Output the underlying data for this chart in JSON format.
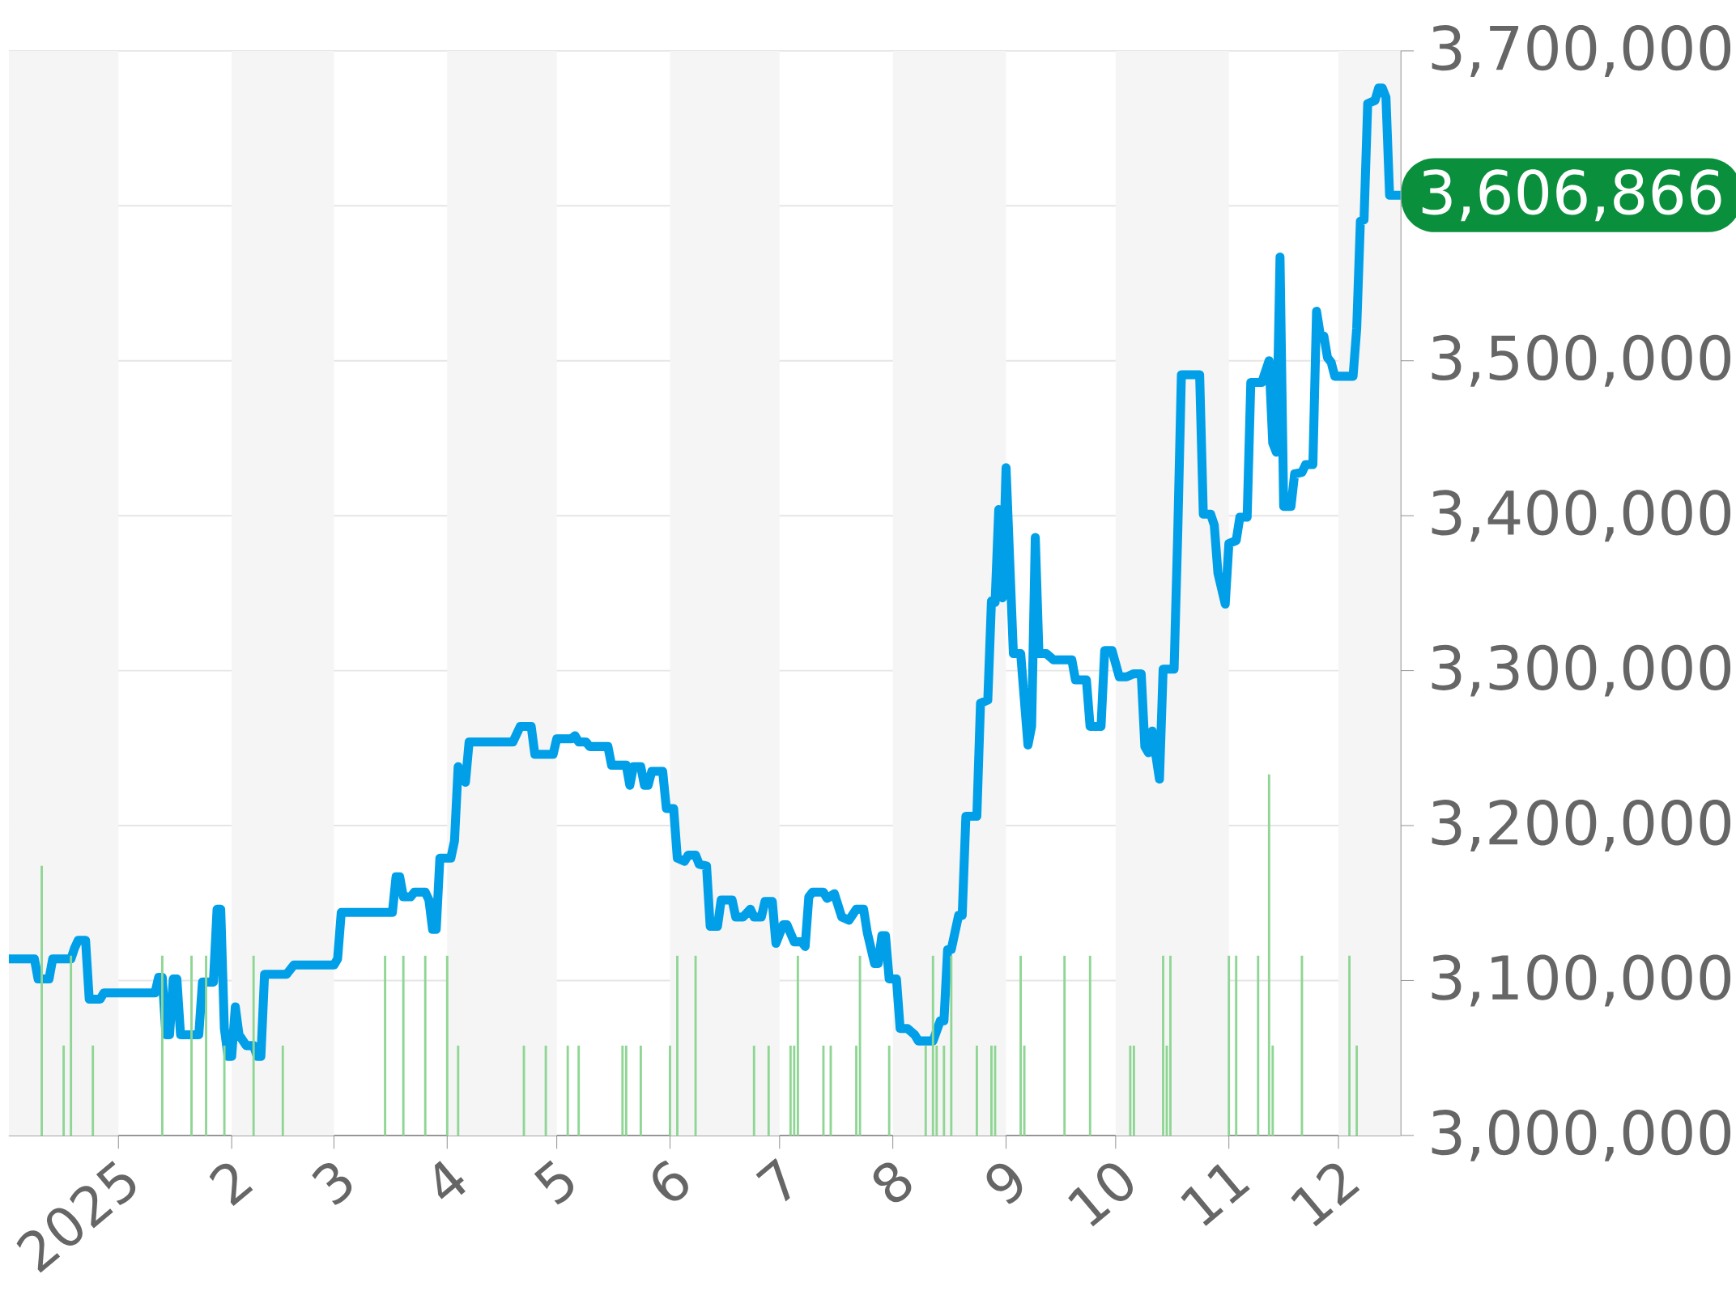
{
  "chart_data": {
    "type": "line",
    "xlim": [
      "2024-12-02",
      "2025-12-18"
    ],
    "ylim": [
      3000000,
      3700000
    ],
    "xticks": [
      {
        "value": "2025-01-01",
        "label": "2025"
      },
      {
        "value": "2025-02-01",
        "label": "2"
      },
      {
        "value": "2025-03-01",
        "label": "3"
      },
      {
        "value": "2025-04-01",
        "label": "4"
      },
      {
        "value": "2025-05-01",
        "label": "5"
      },
      {
        "value": "2025-06-01",
        "label": "6"
      },
      {
        "value": "2025-07-01",
        "label": "7"
      },
      {
        "value": "2025-08-01",
        "label": "8"
      },
      {
        "value": "2025-09-01",
        "label": "9"
      },
      {
        "value": "2025-10-01",
        "label": "10"
      },
      {
        "value": "2025-11-01",
        "label": "11"
      },
      {
        "value": "2025-12-01",
        "label": "12"
      }
    ],
    "yticks": [
      {
        "value": 3000000,
        "label": "3,000,000"
      },
      {
        "value": 3100000,
        "label": "3,100,000"
      },
      {
        "value": 3200000,
        "label": "3,200,000"
      },
      {
        "value": 3300000,
        "label": "3,300,000"
      },
      {
        "value": 3400000,
        "label": "3,400,000"
      },
      {
        "value": 3500000,
        "label": "3,500,000"
      },
      {
        "value": 3600000,
        "label": null
      },
      {
        "value": 3700000,
        "label": "3,700,000"
      }
    ],
    "grid": "y",
    "bands": [
      {
        "axis": "x",
        "from": "2024-12-02",
        "to": "2025-01-01",
        "color": "#f5f5f5"
      },
      {
        "axis": "x",
        "from": "2025-02-01",
        "to": "2025-03-01",
        "color": "#f5f5f5"
      },
      {
        "axis": "x",
        "from": "2025-04-01",
        "to": "2025-05-01",
        "color": "#f5f5f5"
      },
      {
        "axis": "x",
        "from": "2025-06-01",
        "to": "2025-07-01",
        "color": "#f5f5f5"
      },
      {
        "axis": "x",
        "from": "2025-08-01",
        "to": "2025-09-01",
        "color": "#f5f5f5"
      },
      {
        "axis": "x",
        "from": "2025-10-01",
        "to": "2025-11-01",
        "color": "#f5f5f5"
      },
      {
        "axis": "x",
        "from": "2025-12-01",
        "to": "2025-12-18",
        "color": "#f5f5f5"
      }
    ],
    "series": [
      {
        "type": "bar",
        "color": "#8fd694",
        "x": [
          "2024-12-11",
          "2024-12-17",
          "2024-12-19",
          "2024-12-25",
          "2025-01-13",
          "2025-01-21",
          "2025-01-25",
          "2025-01-30",
          "2025-02-07",
          "2025-02-15",
          "2025-03-15",
          "2025-03-20",
          "2025-03-26",
          "2025-04-01",
          "2025-04-04",
          "2025-04-22",
          "2025-04-28",
          "2025-05-04",
          "2025-05-07",
          "2025-05-19",
          "2025-05-20",
          "2025-05-24",
          "2025-06-01",
          "2025-06-03",
          "2025-06-08",
          "2025-06-24",
          "2025-06-28",
          "2025-07-04",
          "2025-07-05",
          "2025-07-06",
          "2025-07-13",
          "2025-07-15",
          "2025-07-22",
          "2025-07-23",
          "2025-07-31",
          "2025-08-10",
          "2025-08-12",
          "2025-08-13",
          "2025-08-15",
          "2025-08-17",
          "2025-08-24",
          "2025-08-28",
          "2025-08-29",
          "2025-09-05",
          "2025-09-06",
          "2025-09-17",
          "2025-09-24",
          "2025-10-05",
          "2025-10-06",
          "2025-10-14",
          "2025-10-15",
          "2025-10-16",
          "2025-11-01",
          "2025-11-03",
          "2025-11-09",
          "2025-11-12",
          "2025-11-13",
          "2025-11-21",
          "2025-12-04",
          "2025-12-06"
        ],
        "values": [
          3174000,
          3058000,
          3116000,
          3058000,
          3116000,
          3116000,
          3116000,
          3058000,
          3116000,
          3058000,
          3116000,
          3116000,
          3116000,
          3116000,
          3058000,
          3058000,
          3058000,
          3058000,
          3058000,
          3058000,
          3058000,
          3058000,
          3058000,
          3116000,
          3116000,
          3058000,
          3058000,
          3058000,
          3058000,
          3116000,
          3058000,
          3058000,
          3058000,
          3116000,
          3058000,
          3058000,
          3116000,
          3058000,
          3058000,
          3116000,
          3058000,
          3058000,
          3058000,
          3116000,
          3058000,
          3116000,
          3116000,
          3058000,
          3058000,
          3116000,
          3058000,
          3116000,
          3116000,
          3116000,
          3116000,
          3233000,
          3058000,
          3116000,
          3116000,
          3058000
        ]
      },
      {
        "color": "#009fe8",
        "x": [
          "2024-12-02",
          "2024-12-09",
          "2024-12-10",
          "2024-12-13",
          "2024-12-14",
          "2024-12-19",
          "2024-12-20",
          "2024-12-21",
          "2024-12-23",
          "2024-12-24",
          "2024-12-27",
          "2024-12-28",
          "2025-01-11",
          "2025-01-12",
          "2025-01-13",
          "2025-01-14",
          "2025-01-15",
          "2025-01-16",
          "2025-01-17",
          "2025-01-18",
          "2025-01-23",
          "2025-01-24",
          "2025-01-27",
          "2025-01-28",
          "2025-01-29",
          "2025-01-30",
          "2025-01-31",
          "2025-02-01",
          "2025-02-02",
          "2025-02-03",
          "2025-02-05",
          "2025-02-07",
          "2025-02-08",
          "2025-02-09",
          "2025-02-10",
          "2025-02-16",
          "2025-02-18",
          "2025-03-01",
          "2025-03-02",
          "2025-03-03",
          "2025-03-17",
          "2025-03-18",
          "2025-03-19",
          "2025-03-20",
          "2025-03-22",
          "2025-03-23",
          "2025-03-26",
          "2025-03-27",
          "2025-03-28",
          "2025-03-29",
          "2025-03-30",
          "2025-04-02",
          "2025-04-03",
          "2025-04-04",
          "2025-04-06",
          "2025-04-07",
          "2025-04-19",
          "2025-04-21",
          "2025-04-24",
          "2025-04-25",
          "2025-04-30",
          "2025-05-01",
          "2025-05-05",
          "2025-05-06",
          "2025-05-07",
          "2025-05-09",
          "2025-05-10",
          "2025-05-15",
          "2025-05-16",
          "2025-05-20",
          "2025-05-21",
          "2025-05-22",
          "2025-05-24",
          "2025-05-25",
          "2025-05-26",
          "2025-05-27",
          "2025-05-30",
          "2025-05-31",
          "2025-06-02",
          "2025-06-03",
          "2025-06-05",
          "2025-06-06",
          "2025-06-08",
          "2025-06-09",
          "2025-06-11",
          "2025-06-12",
          "2025-06-14",
          "2025-06-15",
          "2025-06-18",
          "2025-06-19",
          "2025-06-21",
          "2025-06-23",
          "2025-06-24",
          "2025-06-26",
          "2025-06-27",
          "2025-06-29",
          "2025-06-30",
          "2025-07-02",
          "2025-07-03",
          "2025-07-05",
          "2025-07-07",
          "2025-07-08",
          "2025-07-09",
          "2025-07-10",
          "2025-07-13",
          "2025-07-14",
          "2025-07-16",
          "2025-07-18",
          "2025-07-20",
          "2025-07-22",
          "2025-07-24",
          "2025-07-25",
          "2025-07-27",
          "2025-07-28",
          "2025-07-29",
          "2025-07-30",
          "2025-07-31",
          "2025-08-02",
          "2025-08-03",
          "2025-08-05",
          "2025-08-07",
          "2025-08-08",
          "2025-08-12",
          "2025-08-14",
          "2025-08-15",
          "2025-08-16",
          "2025-08-17",
          "2025-08-19",
          "2025-08-20",
          "2025-08-21",
          "2025-08-24",
          "2025-08-25",
          "2025-08-27",
          "2025-08-28",
          "2025-08-29",
          "2025-08-30",
          "2025-08-31",
          "2025-09-01",
          "2025-09-03",
          "2025-09-05",
          "2025-09-07",
          "2025-09-08",
          "2025-09-09",
          "2025-09-10",
          "2025-09-12",
          "2025-09-14",
          "2025-09-19",
          "2025-09-20",
          "2025-09-23",
          "2025-09-24",
          "2025-09-27",
          "2025-09-28",
          "2025-09-30",
          "2025-10-02",
          "2025-10-04",
          "2025-10-06",
          "2025-10-08",
          "2025-10-09",
          "2025-10-10",
          "2025-10-11",
          "2025-10-13",
          "2025-10-14",
          "2025-10-17",
          "2025-10-18",
          "2025-10-19",
          "2025-10-24",
          "2025-10-25",
          "2025-10-27",
          "2025-10-28",
          "2025-10-29",
          "2025-10-31",
          "2025-11-01",
          "2025-11-03",
          "2025-11-04",
          "2025-11-06",
          "2025-11-07",
          "2025-11-10",
          "2025-11-12",
          "2025-11-13",
          "2025-11-14",
          "2025-11-15",
          "2025-11-16",
          "2025-11-18",
          "2025-11-19",
          "2025-11-21",
          "2025-11-22",
          "2025-11-24",
          "2025-11-25",
          "2025-11-26",
          "2025-11-27",
          "2025-11-28",
          "2025-11-29",
          "2025-11-30",
          "2025-12-05",
          "2025-12-06",
          "2025-12-07",
          "2025-12-08",
          "2025-12-09",
          "2025-12-11",
          "2025-12-12",
          "2025-12-13",
          "2025-12-14",
          "2025-12-15",
          "2025-12-18"
        ],
        "values": [
          3114000,
          3114000,
          3101000,
          3101000,
          3114000,
          3114000,
          3121000,
          3126000,
          3126000,
          3088000,
          3088000,
          3092000,
          3092000,
          3102000,
          3102000,
          3065000,
          3065000,
          3101000,
          3101000,
          3065000,
          3065000,
          3099000,
          3099000,
          3146000,
          3146000,
          3069000,
          3051000,
          3051000,
          3083000,
          3065000,
          3058000,
          3058000,
          3051000,
          3051000,
          3104000,
          3104000,
          3110000,
          3110000,
          3114000,
          3144000,
          3144000,
          3167000,
          3167000,
          3154000,
          3154000,
          3157000,
          3157000,
          3152000,
          3133000,
          3133000,
          3179000,
          3179000,
          3190000,
          3238000,
          3228000,
          3254000,
          3254000,
          3264000,
          3264000,
          3246000,
          3246000,
          3256000,
          3256000,
          3258000,
          3254000,
          3254000,
          3251000,
          3251000,
          3239000,
          3239000,
          3226000,
          3238000,
          3238000,
          3226000,
          3226000,
          3235000,
          3235000,
          3211000,
          3211000,
          3179000,
          3177000,
          3181000,
          3181000,
          3175000,
          3174000,
          3135000,
          3135000,
          3152000,
          3152000,
          3141000,
          3141000,
          3146000,
          3141000,
          3141000,
          3151000,
          3151000,
          3124000,
          3136000,
          3136000,
          3125000,
          3125000,
          3122000,
          3154000,
          3157000,
          3157000,
          3153000,
          3156000,
          3141000,
          3139000,
          3146000,
          3146000,
          3131000,
          3111000,
          3111000,
          3129000,
          3129000,
          3101000,
          3101000,
          3069000,
          3069000,
          3065000,
          3061000,
          3061000,
          3074000,
          3074000,
          3120000,
          3120000,
          3142000,
          3142000,
          3206000,
          3206000,
          3279000,
          3281000,
          3345000,
          3344000,
          3404000,
          3347000,
          3431000,
          3311000,
          3311000,
          3252000,
          3264000,
          3386000,
          3311000,
          3311000,
          3307000,
          3307000,
          3294000,
          3294000,
          3264000,
          3264000,
          3313000,
          3313000,
          3296000,
          3296000,
          3298000,
          3298000,
          3251000,
          3247000,
          3261000,
          3230000,
          3301000,
          3301000,
          3389000,
          3491000,
          3491000,
          3401000,
          3401000,
          3394000,
          3363000,
          3343000,
          3382000,
          3384000,
          3399000,
          3399000,
          3486000,
          3486000,
          3500000,
          3447000,
          3441000,
          3567000,
          3406000,
          3406000,
          3427000,
          3428000,
          3433000,
          3433000,
          3532000,
          3517000,
          3516000,
          3502000,
          3499000,
          3490000,
          3490000,
          3521000,
          3590000,
          3591000,
          3666000,
          3668000,
          3676000,
          3676000,
          3670000,
          3606866,
          3606866
        ]
      }
    ],
    "annotations": [
      {
        "text": "3,606,866",
        "x": "2025-12-18",
        "y": 3606866
      }
    ]
  }
}
